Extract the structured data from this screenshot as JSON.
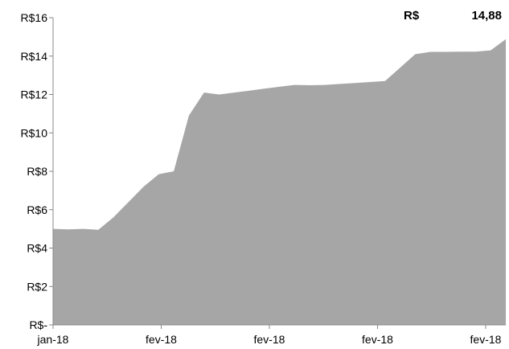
{
  "chart_data": {
    "type": "area",
    "title": "",
    "xlabel": "",
    "ylabel": "",
    "ylim": [
      0,
      16
    ],
    "y_ticks": [
      0,
      2,
      4,
      6,
      8,
      10,
      12,
      14,
      16
    ],
    "y_tick_labels": [
      "R$-",
      "R$2",
      "R$4",
      "R$6",
      "R$8",
      "R$10",
      "R$12",
      "R$14",
      "R$16"
    ],
    "x_tick_labels": [
      "jan-18",
      "fev-18",
      "fev-18",
      "fev-18",
      "fev-18"
    ],
    "grid": false,
    "legend": "none",
    "series": [
      {
        "color": "#a6a6a6",
        "values": [
          5.0,
          4.97,
          5.0,
          4.95,
          5.6,
          6.4,
          7.2,
          7.85,
          8.0,
          10.9,
          12.1,
          12.0,
          12.1,
          12.2,
          12.3,
          12.4,
          12.5,
          12.48,
          12.5,
          12.55,
          12.6,
          12.65,
          12.7,
          13.4,
          14.1,
          14.22,
          14.22,
          14.23,
          14.23,
          14.3,
          14.88
        ]
      }
    ],
    "annotations": {
      "currency": "R$",
      "last_value": "14,88"
    }
  }
}
